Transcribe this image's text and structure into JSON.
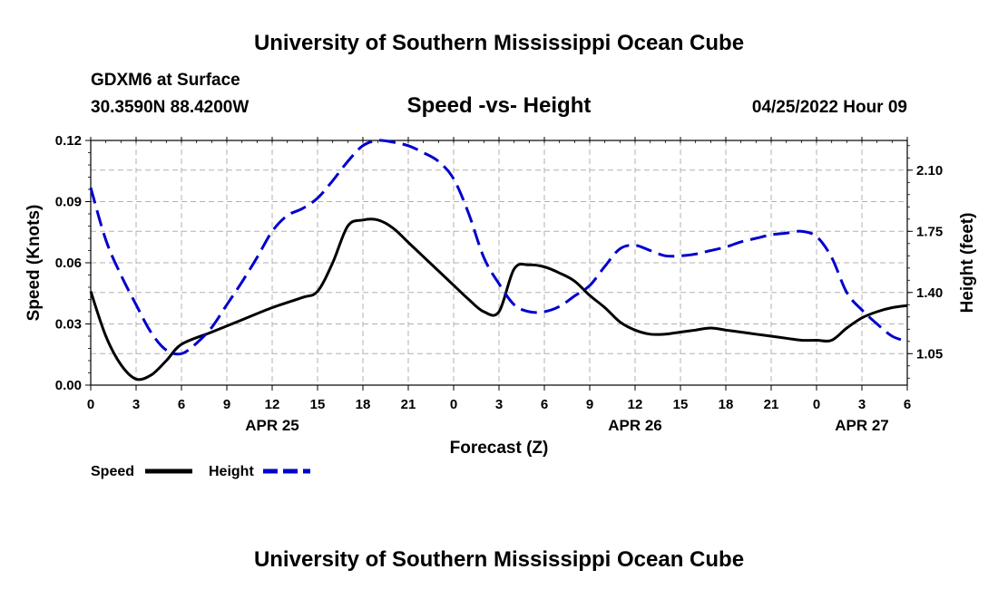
{
  "header": {
    "title": "University of Southern Mississippi Ocean Cube",
    "station": "GDXM6 at Surface",
    "coords": "30.3590N  88.4200W",
    "subtitle": "Speed -vs- Height",
    "datetime": "04/25/2022 Hour 09"
  },
  "footer": {
    "title": "University of Southern Mississippi Ocean Cube"
  },
  "colors": {
    "speed": "#000000",
    "height": "#0000cc",
    "grid": "#b0b0b0"
  },
  "chart_data": {
    "type": "line",
    "title": "Speed -vs- Height",
    "xlabel": "Forecast (Z)",
    "ylabel": "Speed (Knots)",
    "y2label": "Height (feet)",
    "xlim": [
      0,
      54
    ],
    "ylim": [
      0,
      0.12
    ],
    "y2lim": [
      0.87,
      2.27
    ],
    "x_ticks": [
      0,
      3,
      6,
      9,
      12,
      15,
      18,
      21,
      24,
      27,
      30,
      33,
      36,
      39,
      42,
      45,
      48,
      51,
      54
    ],
    "x_tick_labels": [
      "0",
      "3",
      "6",
      "9",
      "12",
      "15",
      "18",
      "21",
      "0",
      "3",
      "6",
      "9",
      "12",
      "15",
      "18",
      "21",
      "0",
      "3",
      "6"
    ],
    "date_labels": [
      {
        "x": 12,
        "label": "APR 25"
      },
      {
        "x": 36,
        "label": "APR 26"
      },
      {
        "x": 51,
        "label": "APR 27"
      }
    ],
    "y_ticks": [
      0,
      0.03,
      0.06,
      0.09,
      0.12
    ],
    "y_tick_labels": [
      "0.00",
      "0.03",
      "0.06",
      "0.09",
      "0.12"
    ],
    "y2_ticks": [
      1.05,
      1.4,
      1.75,
      2.1
    ],
    "y2_tick_labels": [
      "1.05",
      "1.40",
      "1.75",
      "2.10"
    ],
    "grid": true,
    "legend_position": "bottom-left",
    "series": [
      {
        "name": "Speed",
        "axis": "left",
        "style": "solid",
        "x": [
          0,
          1,
          2,
          3,
          4,
          5,
          6,
          8,
          10,
          12,
          14,
          15,
          16,
          17,
          18,
          19,
          20,
          21,
          22,
          23,
          24,
          25,
          26,
          27,
          28,
          29,
          30,
          31,
          32,
          33,
          34,
          35,
          36,
          37,
          38,
          39,
          40,
          41,
          42,
          43,
          44,
          45,
          46,
          47,
          48,
          49,
          50,
          51,
          52,
          53,
          54
        ],
        "values": [
          0.046,
          0.024,
          0.01,
          0.003,
          0.005,
          0.012,
          0.02,
          0.026,
          0.032,
          0.038,
          0.043,
          0.046,
          0.06,
          0.078,
          0.081,
          0.081,
          0.077,
          0.07,
          0.063,
          0.056,
          0.049,
          0.042,
          0.036,
          0.036,
          0.057,
          0.059,
          0.058,
          0.055,
          0.051,
          0.044,
          0.038,
          0.031,
          0.027,
          0.025,
          0.025,
          0.026,
          0.027,
          0.028,
          0.027,
          0.026,
          0.025,
          0.024,
          0.023,
          0.022,
          0.022,
          0.022,
          0.028,
          0.033,
          0.036,
          0.038,
          0.039
        ]
      },
      {
        "name": "Height",
        "axis": "right",
        "style": "dashed",
        "x": [
          0,
          1,
          2,
          3,
          4,
          5,
          6,
          7,
          8,
          9,
          10,
          11,
          12,
          13,
          14,
          15,
          16,
          17,
          18,
          19,
          20,
          21,
          22,
          23,
          24,
          25,
          26,
          27,
          28,
          29,
          30,
          31,
          32,
          33,
          34,
          35,
          36,
          37,
          38,
          39,
          40,
          41,
          42,
          43,
          44,
          45,
          46,
          47,
          48,
          49,
          50,
          51,
          52,
          53,
          54
        ],
        "values": [
          2.0,
          1.7,
          1.5,
          1.33,
          1.17,
          1.07,
          1.05,
          1.11,
          1.2,
          1.33,
          1.46,
          1.6,
          1.75,
          1.84,
          1.88,
          1.94,
          2.04,
          2.15,
          2.24,
          2.27,
          2.26,
          2.24,
          2.2,
          2.15,
          2.05,
          1.85,
          1.6,
          1.45,
          1.33,
          1.29,
          1.29,
          1.32,
          1.38,
          1.44,
          1.55,
          1.65,
          1.67,
          1.64,
          1.61,
          1.61,
          1.62,
          1.64,
          1.66,
          1.69,
          1.71,
          1.73,
          1.74,
          1.75,
          1.72,
          1.6,
          1.4,
          1.3,
          1.22,
          1.15,
          1.12
        ]
      }
    ]
  }
}
